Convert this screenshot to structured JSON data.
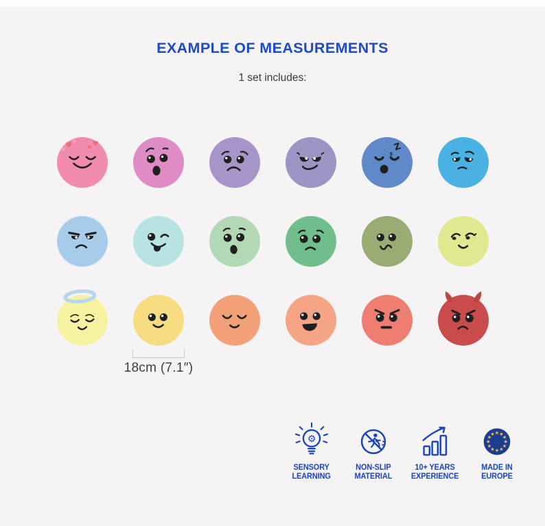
{
  "header": {
    "title": "EXAMPLE OF MEASUREMENTS",
    "subtitle": "1 set includes:"
  },
  "colors": {
    "background": "#f5f3f4",
    "title_blue": "#1c4bca",
    "badge_blue": "#1a45c1",
    "eu_flag_blue": "#1d3d91",
    "eu_star_yellow": "#f6c84c",
    "feature_ink": "#1f1f1f",
    "halo_blue": "#b8d6ea",
    "heart_coral": "#ee6d7f",
    "heart_pink": "#f4a2b6",
    "devil_horn_red": "#c04343"
  },
  "emojis": [
    {
      "name": "in-love",
      "face": "inlove",
      "color": "#f28cad"
    },
    {
      "name": "surprised",
      "face": "surprised",
      "color": "#de8cc3"
    },
    {
      "name": "sad",
      "face": "sad",
      "color": "#a795ca"
    },
    {
      "name": "smug",
      "face": "smug",
      "color": "#9b95c3"
    },
    {
      "name": "sleepy",
      "face": "sleepy",
      "color": "#6089c9"
    },
    {
      "name": "disappointed",
      "face": "disappointed",
      "color": "#49b2e3"
    },
    {
      "name": "annoyed",
      "face": "annoyed",
      "color": "#a6cce9"
    },
    {
      "name": "silly-wink",
      "face": "wink",
      "color": "#b9e2e3"
    },
    {
      "name": "shocked",
      "face": "shocked",
      "color": "#b2d9b4"
    },
    {
      "name": "worried",
      "face": "worried",
      "color": "#6fbe8b"
    },
    {
      "name": "confused",
      "face": "confused",
      "color": "#99ac73"
    },
    {
      "name": "shy-smile",
      "face": "shy",
      "color": "#e0e98f"
    },
    {
      "name": "angel",
      "face": "angel",
      "color": "#f6f2a2"
    },
    {
      "name": "happy",
      "face": "happy",
      "color": "#f8dc81"
    },
    {
      "name": "content",
      "face": "content",
      "color": "#f2a078"
    },
    {
      "name": "laughing",
      "face": "laughing",
      "color": "#f5a586"
    },
    {
      "name": "angry",
      "face": "angry",
      "color": "#ee7d72"
    },
    {
      "name": "devil",
      "face": "devil",
      "color": "#ca4b4b"
    }
  ],
  "measurement": {
    "label": "18cm (7.1″)"
  },
  "badges": [
    {
      "icon": "lightbulb-gear-icon",
      "line1": "SENSORY",
      "line2": "LEARNING"
    },
    {
      "icon": "no-slip-icon",
      "line1": "NON-SLIP",
      "line2": "MATERIAL"
    },
    {
      "icon": "growth-chart-icon",
      "line1": "10+ YEARS",
      "line2": "EXPERIENCE"
    },
    {
      "icon": "eu-flag-icon",
      "line1": "MADE IN",
      "line2": "EUROPE"
    }
  ]
}
